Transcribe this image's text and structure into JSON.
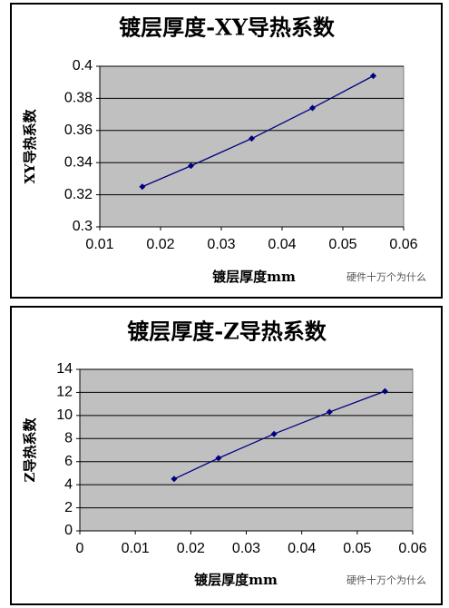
{
  "chart_data": [
    {
      "type": "line",
      "title": "镀层厚度-XY导热系数",
      "y_label": "XY导热系数",
      "x_label": "镀层厚度mm",
      "annotation": "硬件十万个为什么",
      "x": [
        0.017,
        0.025,
        0.035,
        0.045,
        0.055
      ],
      "series": [
        {
          "name": "XY导热系数",
          "color": "#000080",
          "values": [
            0.325,
            0.338,
            0.355,
            0.374,
            0.394
          ]
        }
      ],
      "xlim": [
        0.01,
        0.06
      ],
      "xticks": [
        0.01,
        0.02,
        0.03,
        0.04,
        0.05,
        0.06
      ],
      "ylim": [
        0.3,
        0.4
      ],
      "yticks": [
        0.3,
        0.32,
        0.34,
        0.36,
        0.38,
        0.4
      ],
      "grid": true
    },
    {
      "type": "line",
      "title": "镀层厚度-Z导热系数",
      "y_label": "Z导热系数",
      "x_label": "镀层厚度mm",
      "annotation": "硬件十万个为什么",
      "x": [
        0.017,
        0.025,
        0.035,
        0.045,
        0.055
      ],
      "series": [
        {
          "name": "Z导热系数",
          "color": "#000080",
          "values": [
            4.5,
            6.3,
            8.4,
            10.3,
            12.1
          ]
        }
      ],
      "xlim": [
        0,
        0.06
      ],
      "xticks": [
        0,
        0.01,
        0.02,
        0.03,
        0.04,
        0.05,
        0.06
      ],
      "ylim": [
        0,
        14
      ],
      "yticks": [
        0,
        2,
        4,
        6,
        8,
        10,
        12,
        14
      ],
      "grid": true
    }
  ]
}
